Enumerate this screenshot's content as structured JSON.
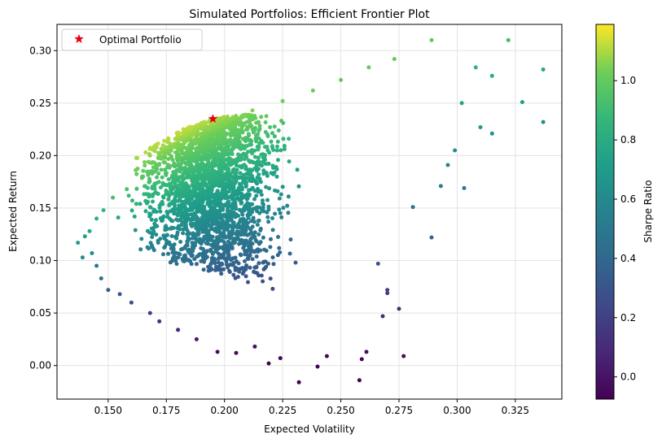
{
  "chart_data": {
    "type": "scatter",
    "title": "Simulated Portfolios: Efficient Frontier Plot",
    "xlabel": "Expected Volatility",
    "ylabel": "Expected Return",
    "xlim": [
      0.128,
      0.345
    ],
    "ylim": [
      -0.032,
      0.325
    ],
    "xticks": [
      0.15,
      0.175,
      0.2,
      0.225,
      0.25,
      0.275,
      0.3,
      0.325
    ],
    "xtick_labels": [
      "0.150",
      "0.175",
      "0.200",
      "0.225",
      "0.250",
      "0.275",
      "0.300",
      "0.325"
    ],
    "yticks": [
      0.0,
      0.05,
      0.1,
      0.15,
      0.2,
      0.25,
      0.3
    ],
    "ytick_labels": [
      "0.00",
      "0.05",
      "0.10",
      "0.15",
      "0.20",
      "0.25",
      "0.30"
    ],
    "grid": true,
    "legend": {
      "position": "top-left",
      "entries": [
        "Optimal Portfolio"
      ]
    },
    "colorbar": {
      "label": "Sharpe Ratio",
      "range": [
        -0.075,
        1.19
      ],
      "ticks": [
        0.0,
        0.2,
        0.4,
        0.6,
        0.8,
        1.0
      ],
      "tick_labels": [
        "0.0",
        "0.2",
        "0.4",
        "0.6",
        "0.8",
        "1.0"
      ],
      "colormap": "viridis"
    },
    "optimal": {
      "name": "Optimal Portfolio",
      "x": 0.195,
      "y": 0.235,
      "color": "#e8000b"
    },
    "sample_points": [
      [
        0.137,
        0.117
      ],
      [
        0.14,
        0.123
      ],
      [
        0.142,
        0.128
      ],
      [
        0.145,
        0.14
      ],
      [
        0.148,
        0.148
      ],
      [
        0.152,
        0.16
      ],
      [
        0.158,
        0.168
      ],
      [
        0.165,
        0.18
      ],
      [
        0.172,
        0.192
      ],
      [
        0.18,
        0.205
      ],
      [
        0.188,
        0.218
      ],
      [
        0.2,
        0.232
      ],
      [
        0.212,
        0.243
      ],
      [
        0.225,
        0.252
      ],
      [
        0.238,
        0.262
      ],
      [
        0.25,
        0.272
      ],
      [
        0.262,
        0.284
      ],
      [
        0.273,
        0.292
      ],
      [
        0.289,
        0.31
      ],
      [
        0.322,
        0.31
      ],
      [
        0.337,
        0.282
      ],
      [
        0.328,
        0.251
      ],
      [
        0.315,
        0.276
      ],
      [
        0.337,
        0.232
      ],
      [
        0.308,
        0.284
      ],
      [
        0.31,
        0.227
      ],
      [
        0.315,
        0.221
      ],
      [
        0.302,
        0.25
      ],
      [
        0.303,
        0.169
      ],
      [
        0.299,
        0.205
      ],
      [
        0.296,
        0.191
      ],
      [
        0.293,
        0.171
      ],
      [
        0.289,
        0.122
      ],
      [
        0.281,
        0.151
      ],
      [
        0.277,
        0.009
      ],
      [
        0.275,
        0.054
      ],
      [
        0.27,
        0.072
      ],
      [
        0.27,
        0.069
      ],
      [
        0.268,
        0.047
      ],
      [
        0.266,
        0.097
      ],
      [
        0.259,
        0.006
      ],
      [
        0.258,
        -0.014
      ],
      [
        0.261,
        0.013
      ],
      [
        0.244,
        0.009
      ],
      [
        0.24,
        -0.001
      ],
      [
        0.232,
        -0.016
      ],
      [
        0.224,
        0.007
      ],
      [
        0.219,
        0.002
      ],
      [
        0.213,
        0.018
      ],
      [
        0.205,
        0.012
      ],
      [
        0.197,
        0.013
      ],
      [
        0.188,
        0.025
      ],
      [
        0.18,
        0.034
      ],
      [
        0.172,
        0.042
      ],
      [
        0.168,
        0.05
      ],
      [
        0.16,
        0.06
      ],
      [
        0.155,
        0.068
      ],
      [
        0.15,
        0.072
      ],
      [
        0.147,
        0.083
      ],
      [
        0.145,
        0.095
      ],
      [
        0.143,
        0.107
      ],
      [
        0.139,
        0.103
      ]
    ]
  }
}
